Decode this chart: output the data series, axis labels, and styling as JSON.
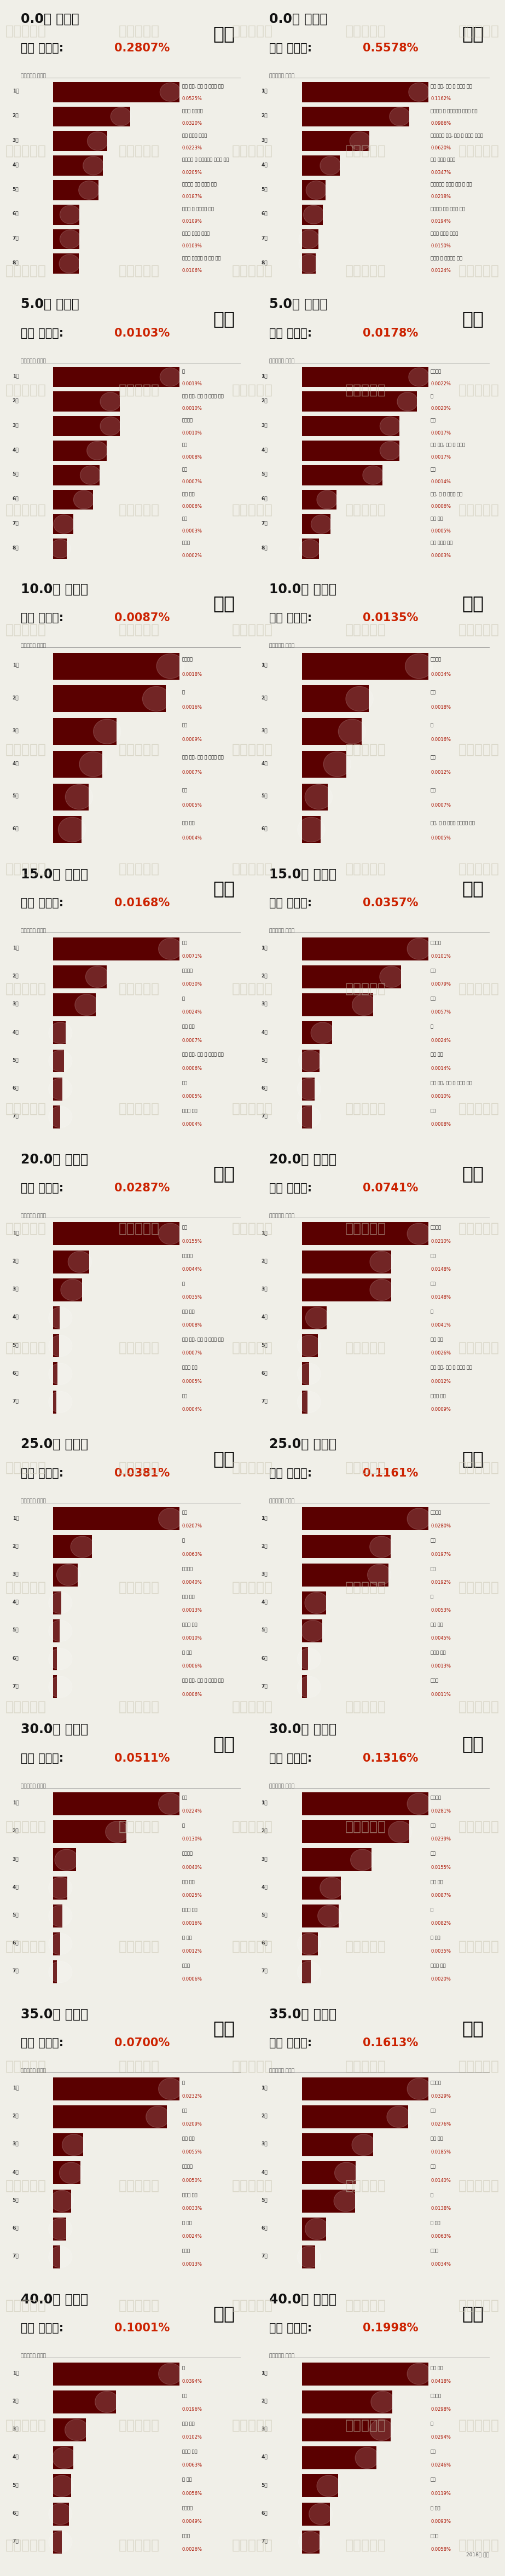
{
  "background_color": "#f0efe8",
  "watermark_text": "인포세이프",
  "bar_color": "#5a0000",
  "title_color": "#111111",
  "rate_color": "#cc2200",
  "rank_color": "#333333",
  "pct_color": "#aa1100",
  "label_color": "#111111",
  "subtitle_color": "#555555",
  "divider_color": "#888888",
  "year_note": "2018년 기준",
  "panels": [
    {
      "age": "0.0",
      "kr_rate": "0.2807%",
      "us_rate": "0.5578%",
      "kr_bars": [
        {
          "rank": 1,
          "label": "선천 기형, 변형 및 염색체 이상",
          "pct": 0.0525
        },
        {
          "rank": 2,
          "label": "신생아 호흡곤란",
          "pct": 0.032
        },
        {
          "rank": 3,
          "label": "영아 돌연사 증후군",
          "pct": 0.0223
        },
        {
          "rank": 4,
          "label": "임신기간 및 태아발육에 관련된 장애",
          "pct": 0.0205
        },
        {
          "rank": 5,
          "label": "신생아의 기타 호흡기 병태",
          "pct": 0.0187
        },
        {
          "rank": 6,
          "label": "출혈성 및 혈액학적 장애",
          "pct": 0.0109
        },
        {
          "rank": 7,
          "label": "신생아 세균성 패혈증",
          "pct": 0.0109
        },
        {
          "rank": 8,
          "label": "자궁내 저산소증 및 출산 질식",
          "pct": 0.0106
        }
      ],
      "us_bars": [
        {
          "rank": 1,
          "label": "선천 기형, 변형 및 염색체 이상",
          "pct": 0.1162
        },
        {
          "rank": 2,
          "label": "임신기간 및 태아발육에 관련된 장애",
          "pct": 0.0986
        },
        {
          "rank": 3,
          "label": "모성요인과 임신, 진통 및 분만의 합병증",
          "pct": 0.062
        },
        {
          "rank": 4,
          "label": "영아 돌연사 증후군",
          "pct": 0.0347
        },
        {
          "rank": 5,
          "label": "침대에서의 우발적 질식 및 교액",
          "pct": 0.0218
        },
        {
          "rank": 6,
          "label": "신생아의 기타 호흡기 병태",
          "pct": 0.0194
        },
        {
          "rank": 7,
          "label": "신생아 세균성 패혈증",
          "pct": 0.015
        },
        {
          "rank": 8,
          "label": "출혈성 및 혈액학적 장애",
          "pct": 0.0124
        }
      ]
    },
    {
      "age": "5.0",
      "kr_rate": "0.0103%",
      "us_rate": "0.0178%",
      "kr_bars": [
        {
          "rank": 1,
          "label": "암",
          "pct": 0.0019
        },
        {
          "rank": 2,
          "label": "선천 기형, 변형 및 염색체 이상",
          "pct": 0.001
        },
        {
          "rank": 3,
          "label": "운수사고",
          "pct": 0.001
        },
        {
          "rank": 4,
          "label": "타살",
          "pct": 0.0008
        },
        {
          "rank": 5,
          "label": "낙상",
          "pct": 0.0007
        },
        {
          "rank": 6,
          "label": "심장 질환",
          "pct": 0.0006
        },
        {
          "rank": 7,
          "label": "익사",
          "pct": 0.0003
        },
        {
          "rank": 8,
          "label": "패혈증",
          "pct": 0.0002
        }
      ],
      "us_bars": [
        {
          "rank": 1,
          "label": "운수사고",
          "pct": 0.0022
        },
        {
          "rank": 2,
          "label": "암",
          "pct": 0.002
        },
        {
          "rank": 3,
          "label": "익사",
          "pct": 0.0017
        },
        {
          "rank": 4,
          "label": "선천 기형, 변형 및 염색체",
          "pct": 0.0017
        },
        {
          "rank": 5,
          "label": "타살",
          "pct": 0.0014
        },
        {
          "rank": 6,
          "label": "연기, 불 및 불꽃에 노출",
          "pct": 0.0006
        },
        {
          "rank": 7,
          "label": "심장 질환",
          "pct": 0.0005
        },
        {
          "rank": 8,
          "label": "만성 하기도 질환",
          "pct": 0.0003
        }
      ]
    },
    {
      "age": "10.0",
      "kr_rate": "0.0087%",
      "us_rate": "0.0135%",
      "kr_bars": [
        {
          "rank": 1,
          "label": "운수사고",
          "pct": 0.0018
        },
        {
          "rank": 2,
          "label": "암",
          "pct": 0.0016
        },
        {
          "rank": 3,
          "label": "자살",
          "pct": 0.0009
        },
        {
          "rank": 4,
          "label": "선천 기형, 변형 및 염색체 이상",
          "pct": 0.0007
        },
        {
          "rank": 5,
          "label": "익수",
          "pct": 0.0005
        },
        {
          "rank": 6,
          "label": "심장 질환",
          "pct": 0.0004
        }
      ],
      "us_bars": [
        {
          "rank": 1,
          "label": "운수사고",
          "pct": 0.0034
        },
        {
          "rank": 2,
          "label": "자살",
          "pct": 0.0018
        },
        {
          "rank": 3,
          "label": "암",
          "pct": 0.0016
        },
        {
          "rank": 4,
          "label": "타살",
          "pct": 0.0012
        },
        {
          "rank": 5,
          "label": "익수",
          "pct": 0.0007
        },
        {
          "rank": 6,
          "label": "화재, 열 및 뜨거운 물질에의 접촉",
          "pct": 0.0005
        }
      ]
    },
    {
      "age": "15.0",
      "kr_rate": "0.0168%",
      "us_rate": "0.0357%",
      "kr_bars": [
        {
          "rank": 1,
          "label": "자살",
          "pct": 0.0071
        },
        {
          "rank": 2,
          "label": "운수사고",
          "pct": 0.003
        },
        {
          "rank": 3,
          "label": "암",
          "pct": 0.0024
        },
        {
          "rank": 4,
          "label": "심장 질환",
          "pct": 0.0007
        },
        {
          "rank": 5,
          "label": "선천 기형, 변형 및 염색체 이상",
          "pct": 0.0006
        },
        {
          "rank": 6,
          "label": "익수",
          "pct": 0.0005
        },
        {
          "rank": 7,
          "label": "뇌혈관 질환",
          "pct": 0.0004
        }
      ],
      "us_bars": [
        {
          "rank": 1,
          "label": "운수사고",
          "pct": 0.0101
        },
        {
          "rank": 2,
          "label": "자살",
          "pct": 0.0079
        },
        {
          "rank": 3,
          "label": "타살",
          "pct": 0.0057
        },
        {
          "rank": 4,
          "label": "암",
          "pct": 0.0024
        },
        {
          "rank": 5,
          "label": "심장 질환",
          "pct": 0.0014
        },
        {
          "rank": 6,
          "label": "선천 기형, 변형 및 염색체 이상",
          "pct": 0.001
        },
        {
          "rank": 7,
          "label": "익수",
          "pct": 0.0008
        }
      ]
    },
    {
      "age": "20.0",
      "kr_rate": "0.0287%",
      "us_rate": "0.0741%",
      "kr_bars": [
        {
          "rank": 1,
          "label": "자살",
          "pct": 0.0155
        },
        {
          "rank": 2,
          "label": "운수사고",
          "pct": 0.0044
        },
        {
          "rank": 3,
          "label": "암",
          "pct": 0.0035
        },
        {
          "rank": 4,
          "label": "심장 질환",
          "pct": 0.0008
        },
        {
          "rank": 5,
          "label": "선천 기형, 변형 및 염색체 이상",
          "pct": 0.0007
        },
        {
          "rank": 6,
          "label": "뇌혈관 질환",
          "pct": 0.0005
        },
        {
          "rank": 7,
          "label": "익수",
          "pct": 0.0004
        }
      ],
      "us_bars": [
        {
          "rank": 1,
          "label": "운수사고",
          "pct": 0.021
        },
        {
          "rank": 2,
          "label": "타살",
          "pct": 0.0148
        },
        {
          "rank": 3,
          "label": "자살",
          "pct": 0.0148
        },
        {
          "rank": 4,
          "label": "암",
          "pct": 0.0041
        },
        {
          "rank": 5,
          "label": "심장 질환",
          "pct": 0.0026
        },
        {
          "rank": 6,
          "label": "선천 기형, 변형 및 염색체 이상",
          "pct": 0.0012
        },
        {
          "rank": 7,
          "label": "뇌혈관 질환",
          "pct": 0.0009
        }
      ]
    },
    {
      "age": "25.0",
      "kr_rate": "0.0381%",
      "us_rate": "0.1161%",
      "kr_bars": [
        {
          "rank": 1,
          "label": "자살",
          "pct": 0.0207
        },
        {
          "rank": 2,
          "label": "암",
          "pct": 0.0063
        },
        {
          "rank": 3,
          "label": "운수사고",
          "pct": 0.004
        },
        {
          "rank": 4,
          "label": "심장 질환",
          "pct": 0.0013
        },
        {
          "rank": 5,
          "label": "뇌혈관 질환",
          "pct": 0.001
        },
        {
          "rank": 6,
          "label": "간 질환",
          "pct": 0.0006
        },
        {
          "rank": 7,
          "label": "선천 기형, 변형 및 염색체 이상",
          "pct": 0.0006
        }
      ],
      "us_bars": [
        {
          "rank": 1,
          "label": "운수사고",
          "pct": 0.028
        },
        {
          "rank": 2,
          "label": "자살",
          "pct": 0.0197
        },
        {
          "rank": 3,
          "label": "타살",
          "pct": 0.0192
        },
        {
          "rank": 4,
          "label": "암",
          "pct": 0.0053
        },
        {
          "rank": 5,
          "label": "심장 질환",
          "pct": 0.0045
        },
        {
          "rank": 6,
          "label": "뇌혈관 질환",
          "pct": 0.0013
        },
        {
          "rank": 7,
          "label": "당뇨병",
          "pct": 0.0011
        }
      ]
    },
    {
      "age": "30.0",
      "kr_rate": "0.0511%",
      "us_rate": "0.1316%",
      "kr_bars": [
        {
          "rank": 1,
          "label": "자살",
          "pct": 0.0224
        },
        {
          "rank": 2,
          "label": "암",
          "pct": 0.013
        },
        {
          "rank": 3,
          "label": "운수사고",
          "pct": 0.004
        },
        {
          "rank": 4,
          "label": "심장 질환",
          "pct": 0.0025
        },
        {
          "rank": 5,
          "label": "뇌혈관 질환",
          "pct": 0.0016
        },
        {
          "rank": 6,
          "label": "간 질환",
          "pct": 0.0012
        },
        {
          "rank": 7,
          "label": "당뇨병",
          "pct": 0.0006
        }
      ],
      "us_bars": [
        {
          "rank": 1,
          "label": "운수사고",
          "pct": 0.0281
        },
        {
          "rank": 2,
          "label": "자살",
          "pct": 0.0239
        },
        {
          "rank": 3,
          "label": "타살",
          "pct": 0.0155
        },
        {
          "rank": 4,
          "label": "심장 질환",
          "pct": 0.0087
        },
        {
          "rank": 5,
          "label": "암",
          "pct": 0.0082
        },
        {
          "rank": 6,
          "label": "간 질환",
          "pct": 0.0035
        },
        {
          "rank": 7,
          "label": "뇌혈관 질환",
          "pct": 0.002
        }
      ]
    },
    {
      "age": "35.0",
      "kr_rate": "0.0700%",
      "us_rate": "0.1613%",
      "kr_bars": [
        {
          "rank": 1,
          "label": "암",
          "pct": 0.0232
        },
        {
          "rank": 2,
          "label": "자살",
          "pct": 0.0209
        },
        {
          "rank": 3,
          "label": "심장 질환",
          "pct": 0.0055
        },
        {
          "rank": 4,
          "label": "운수사고",
          "pct": 0.005
        },
        {
          "rank": 5,
          "label": "뇌혈관 질환",
          "pct": 0.0033
        },
        {
          "rank": 6,
          "label": "간 질환",
          "pct": 0.0024
        },
        {
          "rank": 7,
          "label": "당뇨병",
          "pct": 0.0013
        }
      ],
      "us_bars": [
        {
          "rank": 1,
          "label": "운수사고",
          "pct": 0.0329
        },
        {
          "rank": 2,
          "label": "자살",
          "pct": 0.0276
        },
        {
          "rank": 3,
          "label": "심장 질환",
          "pct": 0.0185
        },
        {
          "rank": 4,
          "label": "타살",
          "pct": 0.014
        },
        {
          "rank": 5,
          "label": "암",
          "pct": 0.0138
        },
        {
          "rank": 6,
          "label": "간 질환",
          "pct": 0.0063
        },
        {
          "rank": 7,
          "label": "당뇨병",
          "pct": 0.0034
        }
      ]
    },
    {
      "age": "40.0",
      "kr_rate": "0.1001%",
      "us_rate": "0.1998%",
      "kr_bars": [
        {
          "rank": 1,
          "label": "암",
          "pct": 0.0394
        },
        {
          "rank": 2,
          "label": "자살",
          "pct": 0.0196
        },
        {
          "rank": 3,
          "label": "심장 질환",
          "pct": 0.0102
        },
        {
          "rank": 4,
          "label": "뇌혈관 질환",
          "pct": 0.0063
        },
        {
          "rank": 5,
          "label": "간 질환",
          "pct": 0.0056
        },
        {
          "rank": 6,
          "label": "운수사고",
          "pct": 0.0049
        },
        {
          "rank": 7,
          "label": "당뇨병",
          "pct": 0.0026
        }
      ],
      "us_bars": [
        {
          "rank": 1,
          "label": "심장 질환",
          "pct": 0.0418
        },
        {
          "rank": 2,
          "label": "운수사고",
          "pct": 0.0298
        },
        {
          "rank": 3,
          "label": "암",
          "pct": 0.0294
        },
        {
          "rank": 4,
          "label": "자살",
          "pct": 0.0246
        },
        {
          "rank": 5,
          "label": "타살",
          "pct": 0.0119
        },
        {
          "rank": 6,
          "label": "간 질환",
          "pct": 0.0093
        },
        {
          "rank": 7,
          "label": "당뇨병",
          "pct": 0.0058
        }
      ]
    }
  ]
}
